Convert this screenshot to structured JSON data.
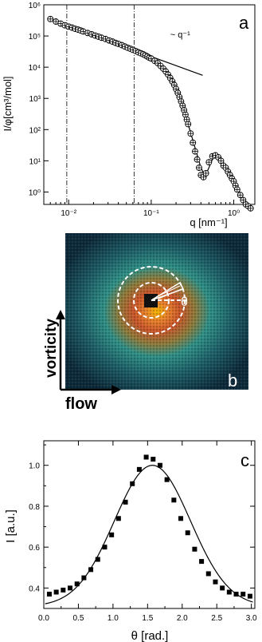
{
  "panels": {
    "a": {
      "letter": "a"
    },
    "b": {
      "letter": "b",
      "vorticity": "vorticity",
      "flow": "flow",
      "theta": "θ"
    },
    "c": {
      "letter": "c"
    }
  },
  "chart_data": [
    {
      "id": "a",
      "type": "scatter",
      "xscale": "log",
      "yscale": "log",
      "xlabel": "q [nm⁻¹]",
      "ylabel": "I/φ[cm³/mol]",
      "xlim": [
        0.005,
        1.8
      ],
      "ylim": [
        0.4,
        1000000
      ],
      "xticks": [
        0.01,
        0.1,
        1
      ],
      "xtick_labels": [
        "10⁻²",
        "10⁻¹",
        "10⁰"
      ],
      "yticks": [
        1,
        10,
        100,
        1000,
        10000,
        100000,
        1000000
      ],
      "ytick_labels": [
        "10⁰",
        "10¹",
        "10²",
        "10³",
        "10⁴",
        "10⁵",
        "10⁶"
      ],
      "annotation": "~ q⁻¹",
      "vlines": [
        0.0095,
        0.062
      ],
      "series": [
        {
          "kind": "markers",
          "x": [
            0.006,
            0.007,
            0.008,
            0.009,
            0.01,
            0.011,
            0.012,
            0.013,
            0.014,
            0.015,
            0.017,
            0.019,
            0.021,
            0.023,
            0.025,
            0.028,
            0.031,
            0.034,
            0.037,
            0.04,
            0.044,
            0.048,
            0.052,
            0.056,
            0.06,
            0.065,
            0.07,
            0.075,
            0.08,
            0.085,
            0.09,
            0.095,
            0.1,
            0.11,
            0.12,
            0.13,
            0.14,
            0.15,
            0.16,
            0.17,
            0.18,
            0.19,
            0.2,
            0.21,
            0.22,
            0.23,
            0.24,
            0.25,
            0.26,
            0.27,
            0.28,
            0.3,
            0.32,
            0.34,
            0.36,
            0.38,
            0.4,
            0.43,
            0.46,
            0.5,
            0.55,
            0.6,
            0.65,
            0.7,
            0.75,
            0.8,
            0.85,
            0.9,
            0.95,
            1.0,
            1.05,
            1.1,
            1.2,
            1.3,
            1.4,
            1.5,
            1.6
          ],
          "y": [
            350000,
            290000,
            250000,
            220000,
            200000,
            185000,
            170000,
            160000,
            150000,
            140000,
            125000,
            113000,
            103000,
            95000,
            88000,
            80000,
            72000,
            66000,
            60000,
            56000,
            51000,
            46000,
            42000,
            39000,
            36000,
            33000,
            30000,
            28000,
            26000,
            24000,
            22000,
            20000,
            19000,
            16000,
            13500,
            11000,
            9000,
            7300,
            5800,
            4500,
            3500,
            2700,
            2000,
            1500,
            1100,
            800,
            580,
            420,
            300,
            210,
            150,
            75,
            38,
            20,
            11,
            6,
            3.5,
            3,
            4,
            9,
            14,
            15,
            13,
            10,
            7,
            6,
            4.5,
            3.5,
            2.7,
            2.2,
            1.6,
            1.2,
            0.8,
            0.55,
            0.4,
            0.35,
            0.3
          ]
        },
        {
          "kind": "power-law line",
          "slope": -1,
          "x": [
            0.006,
            0.42
          ],
          "y": [
            330000,
            5500
          ]
        },
        {
          "kind": "fit curve",
          "x": [
            0.006,
            0.01,
            0.02,
            0.03,
            0.05,
            0.07,
            0.1,
            0.15,
            0.2,
            0.25,
            0.3,
            0.35,
            0.4,
            0.45,
            0.5,
            0.55,
            0.6,
            0.65,
            0.7,
            0.75,
            0.8,
            0.85,
            0.9,
            1.0,
            1.1,
            1.2,
            1.4,
            1.6
          ],
          "y": [
            340000,
            200000,
            106000,
            73000,
            44000,
            31000,
            19000,
            7000,
            2000,
            440,
            80,
            20,
            6,
            3.2,
            6,
            11,
            15,
            14,
            11,
            8,
            6,
            4.7,
            3.7,
            2.3,
            1.4,
            0.9,
            0.45,
            0.3
          ]
        }
      ]
    },
    {
      "id": "c",
      "type": "scatter",
      "xlabel": "θ [rad.]",
      "ylabel": "I [a.u.]",
      "xlim": [
        0.0,
        3.05
      ],
      "ylim": [
        0.3,
        1.12
      ],
      "xticks": [
        0.0,
        0.5,
        1.0,
        1.5,
        2.0,
        2.5,
        3.0
      ],
      "xtick_labels": [
        "0.0",
        "0.5",
        "1.0",
        "1.5",
        "2.0",
        "2.5",
        "3.0"
      ],
      "yticks": [
        0.4,
        0.6,
        0.8,
        1.0
      ],
      "ytick_labels": [
        "0.4",
        "0.6",
        "0.8",
        "1.0"
      ],
      "series": [
        {
          "kind": "markers",
          "x": [
            0.08,
            0.18,
            0.28,
            0.38,
            0.48,
            0.58,
            0.68,
            0.78,
            0.88,
            0.98,
            1.08,
            1.18,
            1.28,
            1.38,
            1.48,
            1.58,
            1.68,
            1.78,
            1.88,
            1.98,
            2.08,
            2.18,
            2.28,
            2.38,
            2.48,
            2.58,
            2.68,
            2.78,
            2.88,
            2.98
          ],
          "y": [
            0.37,
            0.38,
            0.39,
            0.4,
            0.42,
            0.45,
            0.49,
            0.54,
            0.6,
            0.66,
            0.74,
            0.82,
            0.91,
            0.98,
            1.04,
            1.03,
            1.0,
            0.93,
            0.83,
            0.74,
            0.67,
            0.59,
            0.53,
            0.47,
            0.43,
            0.4,
            0.38,
            0.37,
            0.37,
            0.36
          ]
        },
        {
          "kind": "fit curve",
          "model": "gaussian",
          "center": 1.57,
          "sigma": 0.55,
          "baseline": 0.31,
          "amplitude": 0.69
        }
      ]
    }
  ],
  "colors": {
    "axis": "#000000",
    "marker_stroke": "#000000",
    "detector_outer": "#0d2a3a",
    "detector_mid": "#2f8f86",
    "detector_inner": "#c8552a",
    "detector_core": "#f2b400",
    "circle": "#ffffff"
  }
}
